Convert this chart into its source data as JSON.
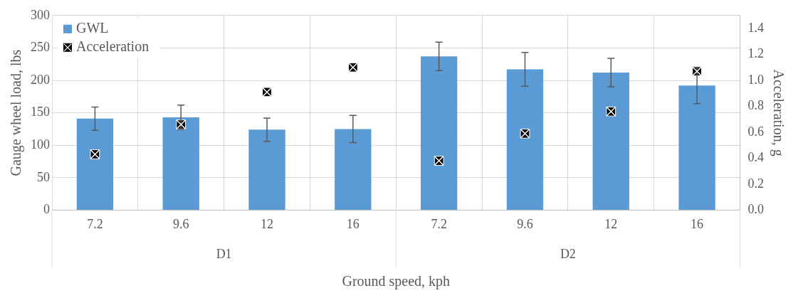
{
  "chart_data": {
    "type": "bar",
    "categories": [
      "7.2",
      "9.6",
      "12",
      "16",
      "7.2",
      "9.6",
      "12",
      "16"
    ],
    "annotations": [
      "D1",
      "D2"
    ],
    "xlabel": "Ground speed, kph",
    "ylabel": "Gauge wheel load, lbs",
    "y2label": "Acceleration, g",
    "series": [
      {
        "name": "GWL",
        "color": "#5b9bd5",
        "values": [
          141,
          143,
          124,
          125,
          237,
          217,
          212,
          192
        ],
        "errors": [
          18,
          19,
          18,
          21,
          22,
          26,
          22,
          28
        ]
      },
      {
        "name": "Acceleration",
        "type": "scatter",
        "axis": "y2",
        "color": "#000000",
        "marker": "square",
        "values": [
          0.43,
          0.66,
          0.91,
          1.1,
          0.38,
          0.59,
          0.76,
          1.07
        ]
      }
    ],
    "ylim": [
      0,
      300
    ],
    "yticks": [
      0,
      50,
      100,
      150,
      200,
      250,
      300
    ],
    "y2lim": [
      0,
      1.5
    ],
    "y2ticks": [
      {
        "value": 0,
        "label": "0.0"
      },
      0.2,
      0.4,
      0.6,
      0.8,
      {
        "value": 1,
        "label": "1.0"
      },
      1.2,
      1.4
    ],
    "grid": true,
    "legend": "top left"
  }
}
